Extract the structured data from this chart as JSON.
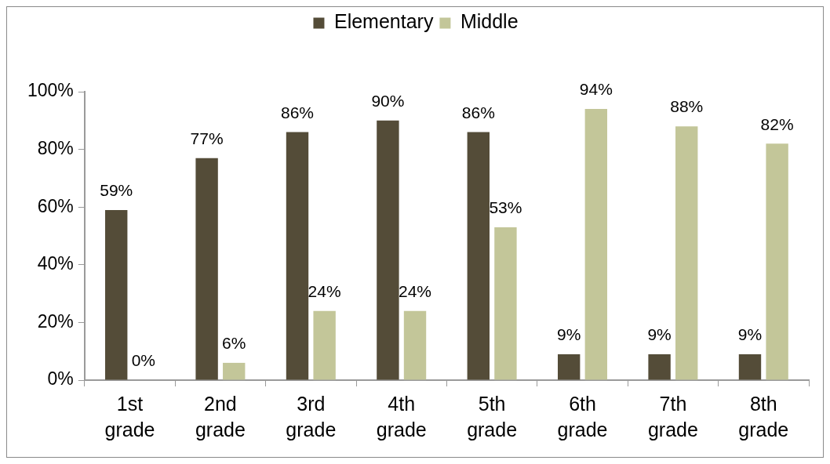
{
  "chart_data": {
    "type": "bar",
    "categories": [
      "1st grade",
      "2nd grade",
      "3rd grade",
      "4th grade",
      "5th grade",
      "6th grade",
      "7th grade",
      "8th grade"
    ],
    "series": [
      {
        "name": "Elementary",
        "color": "#544c38",
        "values": [
          59,
          77,
          86,
          90,
          86,
          9,
          9,
          9
        ],
        "value_labels": [
          "59%",
          "77%",
          "86%",
          "90%",
          "86%",
          "9%",
          "9%",
          "9%"
        ]
      },
      {
        "name": "Middle",
        "color": "#c3c699",
        "values": [
          0,
          6,
          24,
          24,
          53,
          94,
          88,
          82
        ],
        "value_labels": [
          "0%",
          "6%",
          "24%",
          "24%",
          "53%",
          "94%",
          "88%",
          "82%"
        ]
      }
    ],
    "ylim": [
      0,
      100
    ],
    "yticks": [
      {
        "value": 0,
        "label": "0%"
      },
      {
        "value": 20,
        "label": "20%"
      },
      {
        "value": 40,
        "label": "40%"
      },
      {
        "value": 60,
        "label": "60%"
      },
      {
        "value": 80,
        "label": "80%"
      },
      {
        "value": 100,
        "label": "100%"
      }
    ],
    "grid": false,
    "legend": "top"
  }
}
